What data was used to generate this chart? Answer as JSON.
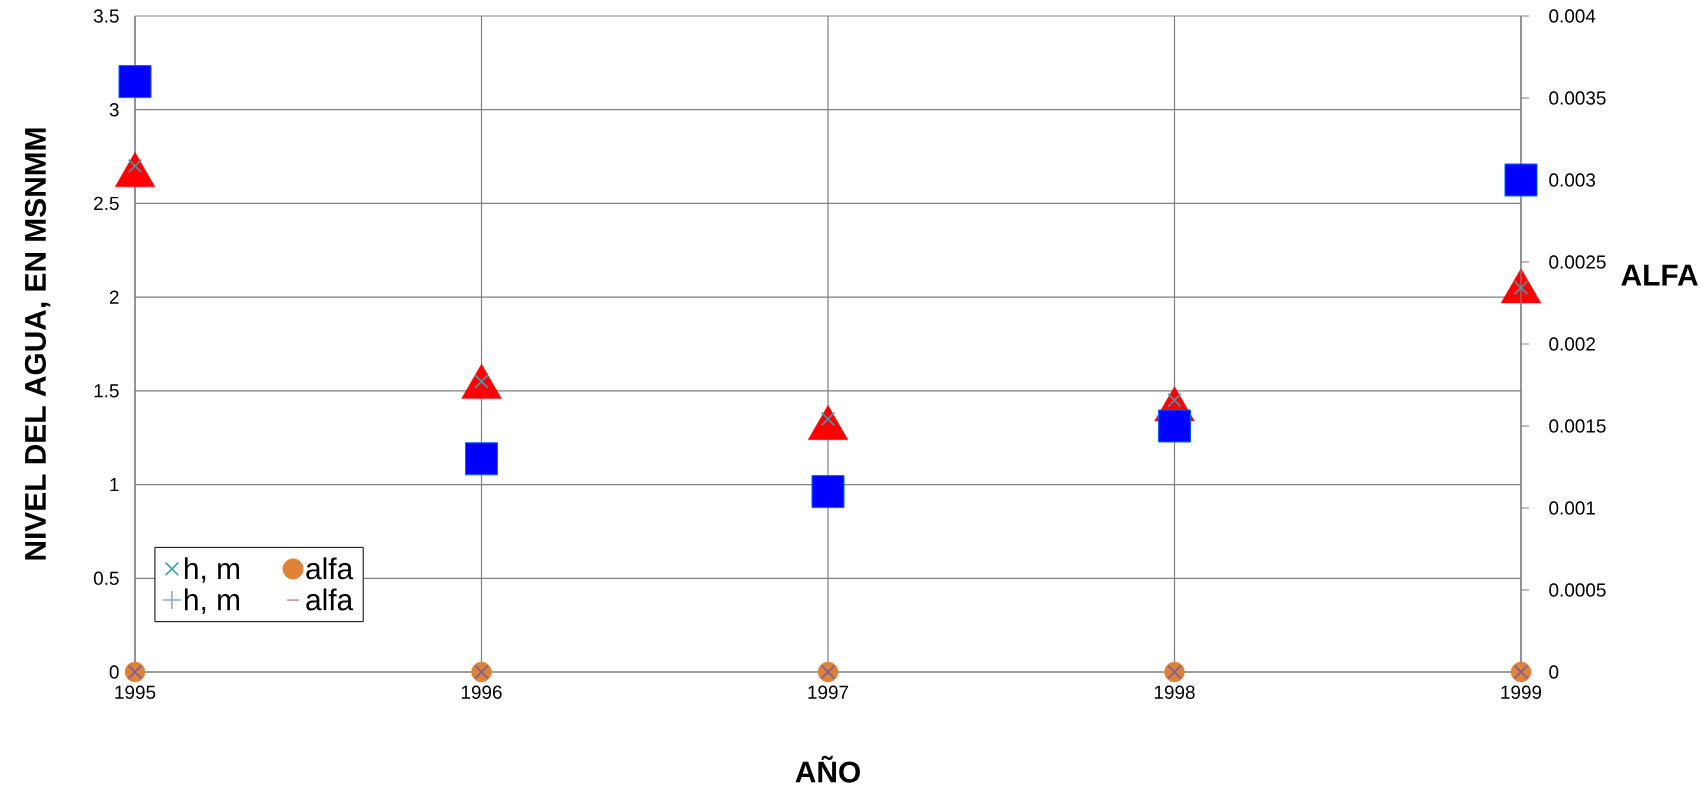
{
  "chart_data": {
    "type": "scatter",
    "xlabel": "AÑO",
    "ylabel": "NIVEL DEL AGUA, EN MSNMM",
    "y2label": "ALFA",
    "categories": [
      "1995",
      "1996",
      "1997",
      "1998",
      "1999"
    ],
    "ylim": [
      0,
      3.5
    ],
    "yticks": [
      0,
      0.5,
      1,
      1.5,
      2,
      2.5,
      3,
      3.5
    ],
    "y2lim": [
      0,
      0.004
    ],
    "y2ticks": [
      0,
      0.0005,
      0.001,
      0.0015,
      0.002,
      0.0025,
      0.003,
      0.0035,
      0.004
    ],
    "grid": true,
    "legend": "bottom left",
    "series": [
      {
        "name": "h, m",
        "color": "#3a9bb0",
        "marker": "cross",
        "values": [
          2.7,
          1.55,
          1.35,
          1.45,
          2.05
        ]
      },
      {
        "name": "alfa",
        "color": "#dd8236",
        "marker": "circle",
        "axis": "y2",
        "values": [
          0,
          0,
          0,
          0,
          0
        ]
      },
      {
        "name": "h, m",
        "color": "#8fa8d0",
        "marker": "plus",
        "values": [
          null,
          null,
          null,
          null,
          null
        ]
      },
      {
        "name": "alfa",
        "color": "#d09090",
        "marker": "dash",
        "axis": "y2",
        "values": [
          null,
          null,
          null,
          null,
          null
        ]
      },
      {
        "color": "#ff0000",
        "marker": "triangle",
        "values": [
          2.65,
          1.52,
          1.3,
          1.4,
          2.03
        ]
      },
      {
        "color": "#0000ff",
        "marker": "square",
        "axis": "y2",
        "values": [
          0.0036,
          0.0013,
          0.0011,
          0.0015,
          0.003
        ]
      },
      {
        "color": "#7a5ea0",
        "marker": "cross",
        "axis": "y2",
        "values": [
          0,
          0,
          0,
          0,
          0
        ]
      }
    ]
  }
}
